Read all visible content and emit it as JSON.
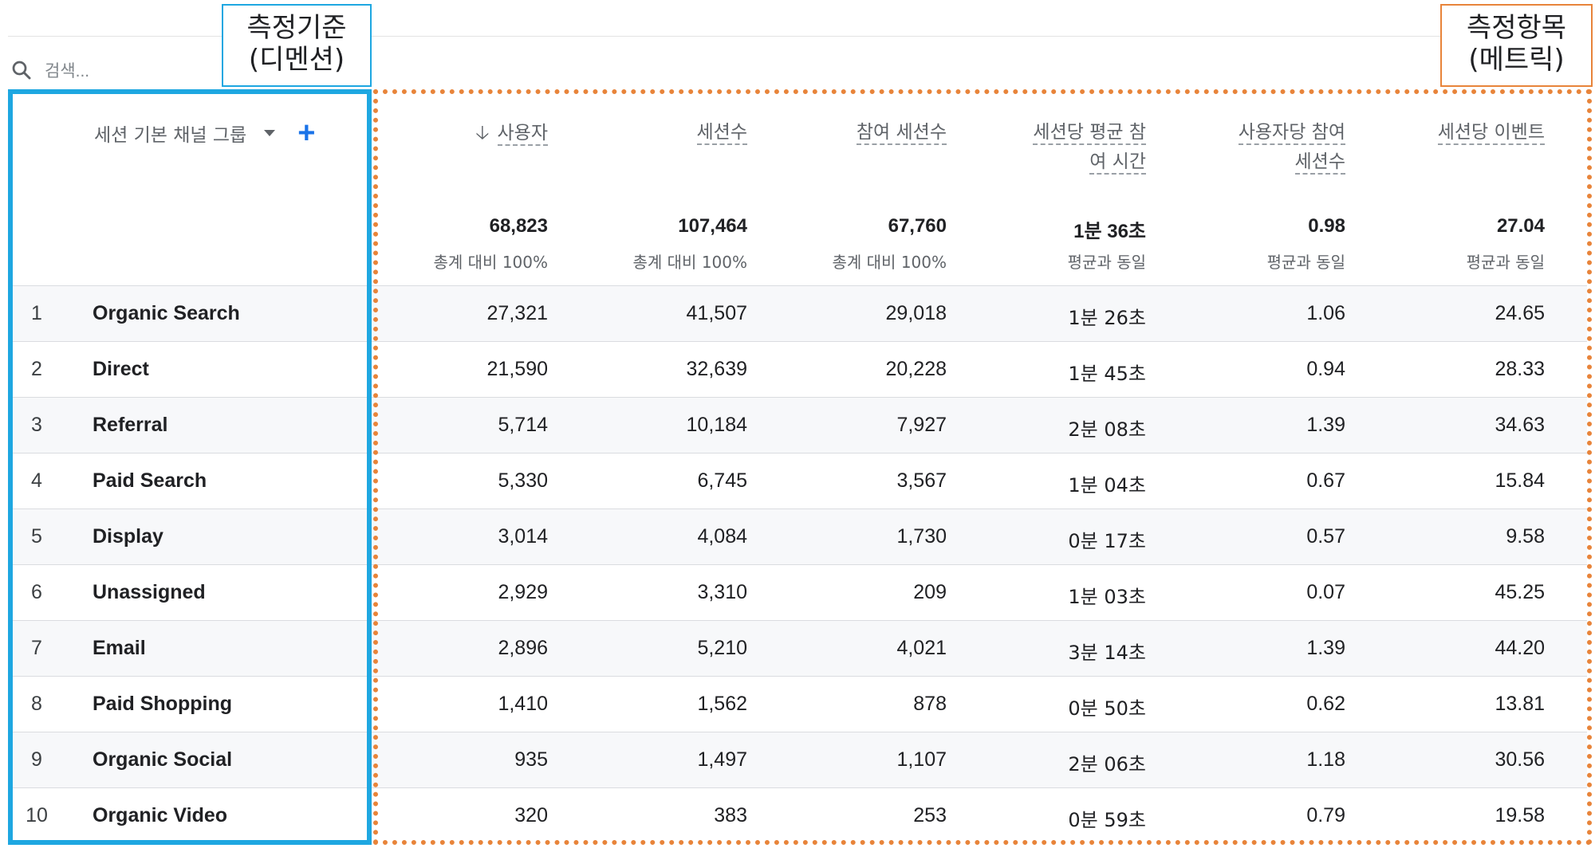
{
  "search": {
    "placeholder": "검색..."
  },
  "callouts": {
    "dimension": {
      "line1": "측정기준",
      "line2": "(디멘션)",
      "color": "#1ea7e1"
    },
    "metric": {
      "line1": "측정항목",
      "line2": "(메트릭)",
      "color": "#e8843a"
    }
  },
  "dimension_header": {
    "label": "세션 기본 채널 그룹",
    "add_symbol": "+"
  },
  "metrics": [
    {
      "line1": "사용자",
      "line2": "",
      "sorted": true,
      "total": "68,823",
      "sub": "총계 대비 100%"
    },
    {
      "line1": "세션수",
      "line2": "",
      "sorted": false,
      "total": "107,464",
      "sub": "총계 대비 100%"
    },
    {
      "line1": "참여 세션수",
      "line2": "",
      "sorted": false,
      "total": "67,760",
      "sub": "총계 대비 100%"
    },
    {
      "line1": "세션당 평균 참",
      "line2": "여 시간",
      "sorted": false,
      "total": "1분 36초",
      "sub": "평균과 동일"
    },
    {
      "line1": "사용자당 참여",
      "line2": "세션수",
      "sorted": false,
      "total": "0.98",
      "sub": "평균과 동일"
    },
    {
      "line1": "세션당 이벤트",
      "line2": "",
      "sorted": false,
      "total": "27.04",
      "sub": "평균과 동일"
    }
  ],
  "rows": [
    {
      "n": "1",
      "name": "Organic Search",
      "v": [
        "27,321",
        "41,507",
        "29,018",
        "1분 26초",
        "1.06",
        "24.65"
      ]
    },
    {
      "n": "2",
      "name": "Direct",
      "v": [
        "21,590",
        "32,639",
        "20,228",
        "1분 45초",
        "0.94",
        "28.33"
      ]
    },
    {
      "n": "3",
      "name": "Referral",
      "v": [
        "5,714",
        "10,184",
        "7,927",
        "2분 08초",
        "1.39",
        "34.63"
      ]
    },
    {
      "n": "4",
      "name": "Paid Search",
      "v": [
        "5,330",
        "6,745",
        "3,567",
        "1분 04초",
        "0.67",
        "15.84"
      ]
    },
    {
      "n": "5",
      "name": "Display",
      "v": [
        "3,014",
        "4,084",
        "1,730",
        "0분 17초",
        "0.57",
        "9.58"
      ]
    },
    {
      "n": "6",
      "name": "Unassigned",
      "v": [
        "2,929",
        "3,310",
        "209",
        "1분 03초",
        "0.07",
        "45.25"
      ]
    },
    {
      "n": "7",
      "name": "Email",
      "v": [
        "2,896",
        "5,210",
        "4,021",
        "3분 14초",
        "1.39",
        "44.20"
      ]
    },
    {
      "n": "8",
      "name": "Paid Shopping",
      "v": [
        "1,410",
        "1,562",
        "878",
        "0분 50초",
        "0.62",
        "13.81"
      ]
    },
    {
      "n": "9",
      "name": "Organic Social",
      "v": [
        "935",
        "1,497",
        "1,107",
        "2분 06초",
        "1.18",
        "30.56"
      ]
    },
    {
      "n": "10",
      "name": "Organic Video",
      "v": [
        "320",
        "383",
        "253",
        "0분 59초",
        "0.79",
        "19.58"
      ]
    }
  ]
}
